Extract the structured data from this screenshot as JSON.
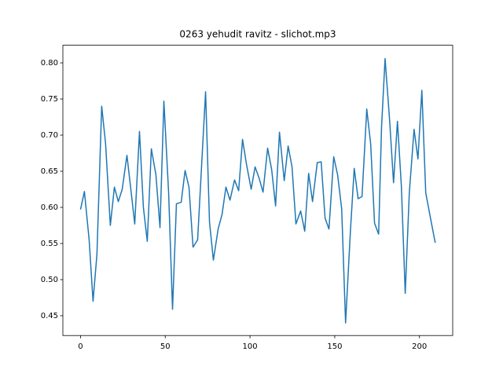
{
  "chart_data": {
    "type": "line",
    "title": "0263 yehudit ravitz - slichot.mp3",
    "x": [
      0,
      2.3,
      5.1,
      7.4,
      9.7,
      12.5,
      14.8,
      17.6,
      20.0,
      22.3,
      24.6,
      27.4,
      29.7,
      32.0,
      34.8,
      37.1,
      39.4,
      41.8,
      44.5,
      46.9,
      49.2,
      52.0,
      54.3,
      56.6,
      59.4,
      61.7,
      64.0,
      66.4,
      69.1,
      71.5,
      73.8,
      76.1,
      78.4,
      81.2,
      83.5,
      85.8,
      88.2,
      90.9,
      93.3,
      95.6,
      97.9,
      100.7,
      103.0,
      105.3,
      107.7,
      110.4,
      112.8,
      115.1,
      117.4,
      120.2,
      122.5,
      124.8,
      127.1,
      129.9,
      132.3,
      134.6,
      136.9,
      139.7,
      142.0,
      144.3,
      146.6,
      149.4,
      151.7,
      154.1,
      156.4,
      159.2,
      161.5,
      163.8,
      166.1,
      168.9,
      171.2,
      173.5,
      175.9,
      177.6,
      179.7,
      182.4,
      184.7,
      187.0,
      189.3,
      191.6,
      194.0,
      196.8,
      199.1,
      201.4,
      203.7,
      206.5,
      209.3
    ],
    "series": [
      {
        "color": "#1f77b4",
        "values": [
          0.597,
          0.622,
          0.555,
          0.47,
          0.535,
          0.74,
          0.688,
          0.575,
          0.628,
          0.608,
          0.625,
          0.672,
          0.625,
          0.577,
          0.705,
          0.6,
          0.553,
          0.681,
          0.645,
          0.572,
          0.747,
          0.62,
          0.459,
          0.605,
          0.607,
          0.651,
          0.628,
          0.545,
          0.555,
          0.66,
          0.76,
          0.58,
          0.527,
          0.57,
          0.59,
          0.628,
          0.61,
          0.638,
          0.623,
          0.694,
          0.66,
          0.625,
          0.656,
          0.641,
          0.621,
          0.682,
          0.652,
          0.602,
          0.704,
          0.637,
          0.685,
          0.656,
          0.577,
          0.595,
          0.567,
          0.647,
          0.608,
          0.662,
          0.663,
          0.585,
          0.57,
          0.67,
          0.645,
          0.598,
          0.44,
          0.565,
          0.654,
          0.612,
          0.615,
          0.736,
          0.688,
          0.578,
          0.563,
          0.71,
          0.806,
          0.72,
          0.634,
          0.719,
          0.63,
          0.481,
          0.62,
          0.708,
          0.667,
          0.762,
          0.62,
          0.585,
          0.551
        ]
      }
    ],
    "xlim": [
      -10.4,
      219.6
    ],
    "ylim": [
      0.4226,
      0.8244
    ],
    "xticks": [
      0,
      50,
      100,
      150,
      200
    ],
    "yticks": [
      0.45,
      {
        "value": 0.5,
        "label": "0.50"
      },
      0.55,
      {
        "value": 0.6,
        "label": "0.60"
      },
      0.65,
      {
        "value": 0.7,
        "label": "0.70"
      },
      0.75,
      {
        "value": 0.8,
        "label": "0.80"
      }
    ]
  }
}
